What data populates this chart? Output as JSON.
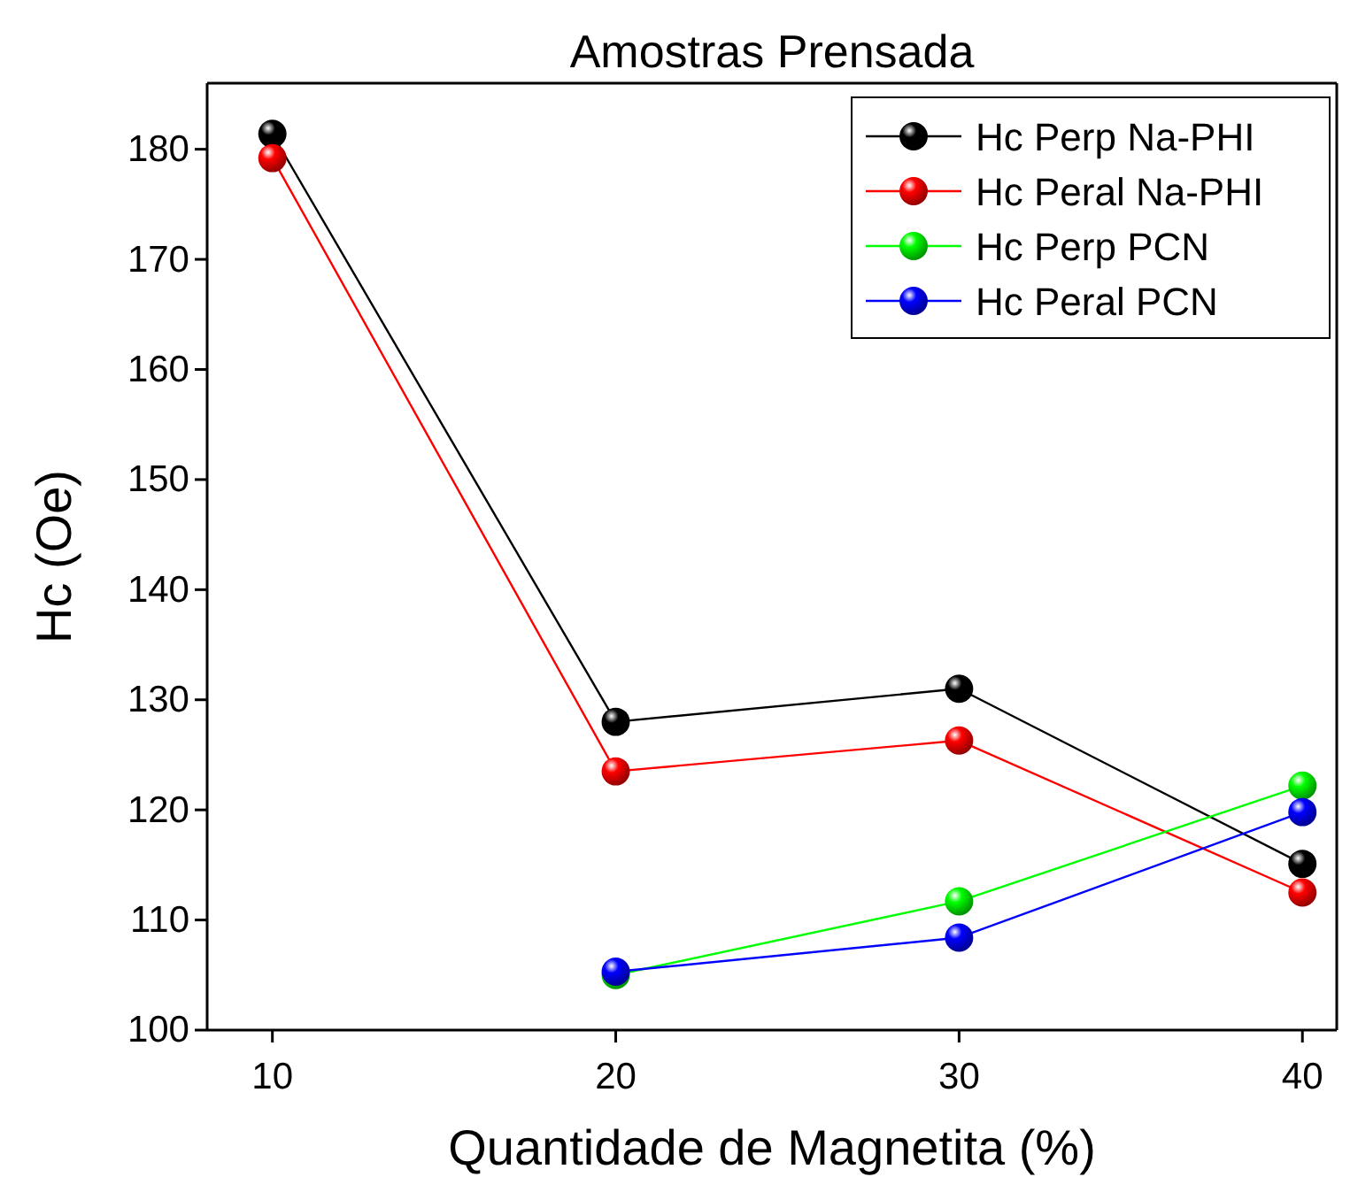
{
  "chart_data": {
    "type": "line",
    "title": "Amostras Prensada",
    "xlabel": "Quantidade de Magnetita (%)",
    "ylabel": "Hc (Oe)",
    "x": [
      10,
      20,
      30,
      40
    ],
    "series": [
      {
        "name": "Hc Perp Na-PHI",
        "color": "#000000",
        "values": [
          181.4,
          128,
          131,
          115.1
        ]
      },
      {
        "name": "Hc Peral Na-PHI",
        "color": "#ff0000",
        "values": [
          179.2,
          123.5,
          126.3,
          112.5
        ]
      },
      {
        "name": "Hc Perp PCN",
        "color": "#00ff00",
        "values": [
          null,
          105,
          111.7,
          122.2
        ]
      },
      {
        "name": "Hc Peral PCN",
        "color": "#0000ff",
        "values": [
          null,
          105.3,
          108.4,
          119.8
        ]
      }
    ],
    "xlim": [
      8.1,
      41
    ],
    "xticks": [
      10,
      20,
      30,
      40
    ],
    "ylim": [
      100,
      186
    ],
    "yticks": [
      100,
      110,
      120,
      130,
      140,
      150,
      160,
      170,
      180
    ],
    "grid": false,
    "legend": "top right",
    "marker": "circle",
    "line_style": "solid"
  }
}
